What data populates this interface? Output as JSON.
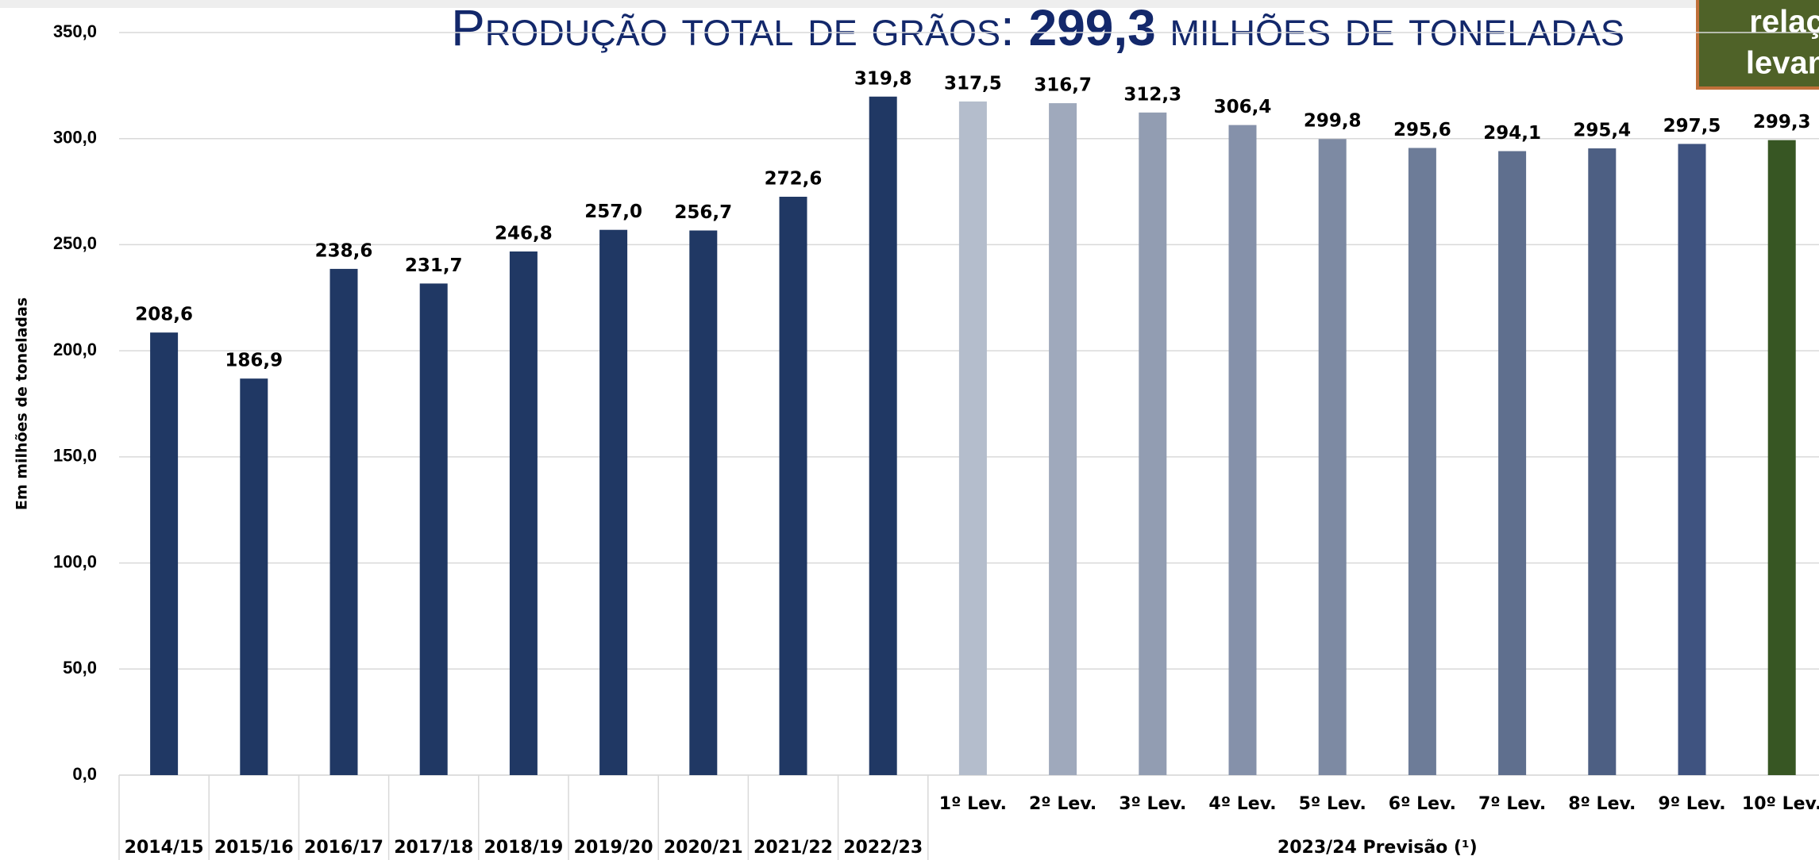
{
  "chart_data": {
    "type": "bar",
    "title": [
      "Produção total de grãos: ",
      "299,3",
      " milhões de toneladas"
    ],
    "annotations": [
      "relaç",
      "levan"
    ],
    "ylabel": "Em milhões de toneladas",
    "categories": [
      "2014/15",
      "2015/16",
      "2016/17",
      "2017/18",
      "2018/19",
      "2019/20",
      "2020/21",
      "2021/22",
      "2022/23",
      "1º Lev.",
      "2º Lev.",
      "3º Lev.",
      "4º Lev.",
      "5º Lev.",
      "6º Lev.",
      "7º Lev.",
      "8º Lev.",
      "9º Lev.",
      "10º Lev."
    ],
    "group_label": "2023/24 Previsão (¹)",
    "values": [
      208.6,
      186.9,
      238.6,
      231.7,
      246.8,
      257.0,
      256.7,
      272.6,
      319.8,
      317.5,
      316.7,
      312.3,
      306.4,
      299.8,
      295.6,
      294.1,
      295.4,
      297.5,
      299.3
    ],
    "value_labels": [
      "208,6",
      "186,9",
      "238,6",
      "231,7",
      "246,8",
      "257,0",
      "256,7",
      "272,6",
      "319,8",
      "317,5",
      "316,7",
      "312,3",
      "306,4",
      "299,8",
      "295,6",
      "294,1",
      "295,4",
      "297,5",
      "299,3"
    ],
    "colors": [
      "#203864",
      "#203864",
      "#203864",
      "#203864",
      "#203864",
      "#203864",
      "#203864",
      "#203864",
      "#203864",
      "#b4bdcc",
      "#9fa9bc",
      "#929db2",
      "#8591aa",
      "#7d8aa3",
      "#6d7c98",
      "#5f6f8e",
      "#4d5f83",
      "#3f5380",
      "#375623"
    ],
    "ylim": [
      0,
      350
    ],
    "yticks": [
      {
        "value": 0,
        "label": "0,0"
      },
      {
        "value": 50,
        "label": "50,0"
      },
      {
        "value": 100,
        "label": "100,0"
      },
      {
        "value": 150,
        "label": "150,0"
      },
      {
        "value": 200,
        "label": "200,0"
      },
      {
        "value": 250,
        "label": "250,0"
      },
      {
        "value": 300,
        "label": "300,0"
      },
      {
        "value": 350,
        "label": "350,0"
      }
    ],
    "grid": true
  }
}
